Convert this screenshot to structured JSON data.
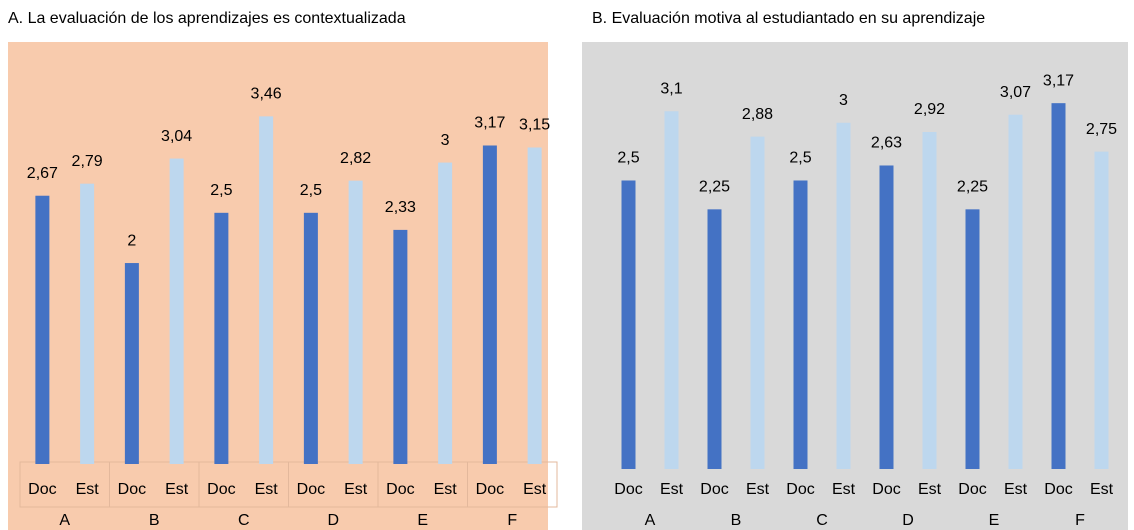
{
  "chart_data": [
    {
      "type": "bar",
      "title": "A. La evaluación de los aprendizajes es contextualizada",
      "categories": [
        "A",
        "B",
        "C",
        "D",
        "E",
        "F"
      ],
      "series": [
        {
          "name": "Doc",
          "color": "#4472c4",
          "values": [
            2.67,
            2,
            2.5,
            2.5,
            2.33,
            3.17
          ],
          "value_labels": [
            "2,67",
            "2",
            "2,5",
            "2,5",
            "2,33",
            "3,17"
          ]
        },
        {
          "name": "Est",
          "color": "#bdd7ee",
          "values": [
            2.79,
            3.04,
            3.46,
            2.82,
            3,
            3.15
          ],
          "value_labels": [
            "2,79",
            "3,04",
            "3,46",
            "2,82",
            "3",
            "3,15"
          ]
        }
      ],
      "background": "#f8cbad",
      "ylim": [
        0,
        4.2
      ]
    },
    {
      "type": "bar",
      "title": "B. Evaluación motiva al estudiantado en su aprendizaje",
      "categories": [
        "A",
        "B",
        "C",
        "D",
        "E",
        "F"
      ],
      "series": [
        {
          "name": "Doc",
          "color": "#4472c4",
          "values": [
            2.5,
            2.25,
            2.5,
            2.63,
            2.25,
            3.17
          ],
          "value_labels": [
            "2,5",
            "2,25",
            "2,5",
            "2,63",
            "2,25",
            "3,17"
          ]
        },
        {
          "name": "Est",
          "color": "#bdd7ee",
          "values": [
            3.1,
            2.88,
            3,
            2.92,
            3.07,
            2.75
          ],
          "value_labels": [
            "3,1",
            "2,88",
            "3",
            "2,92",
            "3,07",
            "2,75"
          ]
        }
      ],
      "background": "#d9d9d9",
      "ylim": [
        0,
        3.7
      ]
    }
  ]
}
